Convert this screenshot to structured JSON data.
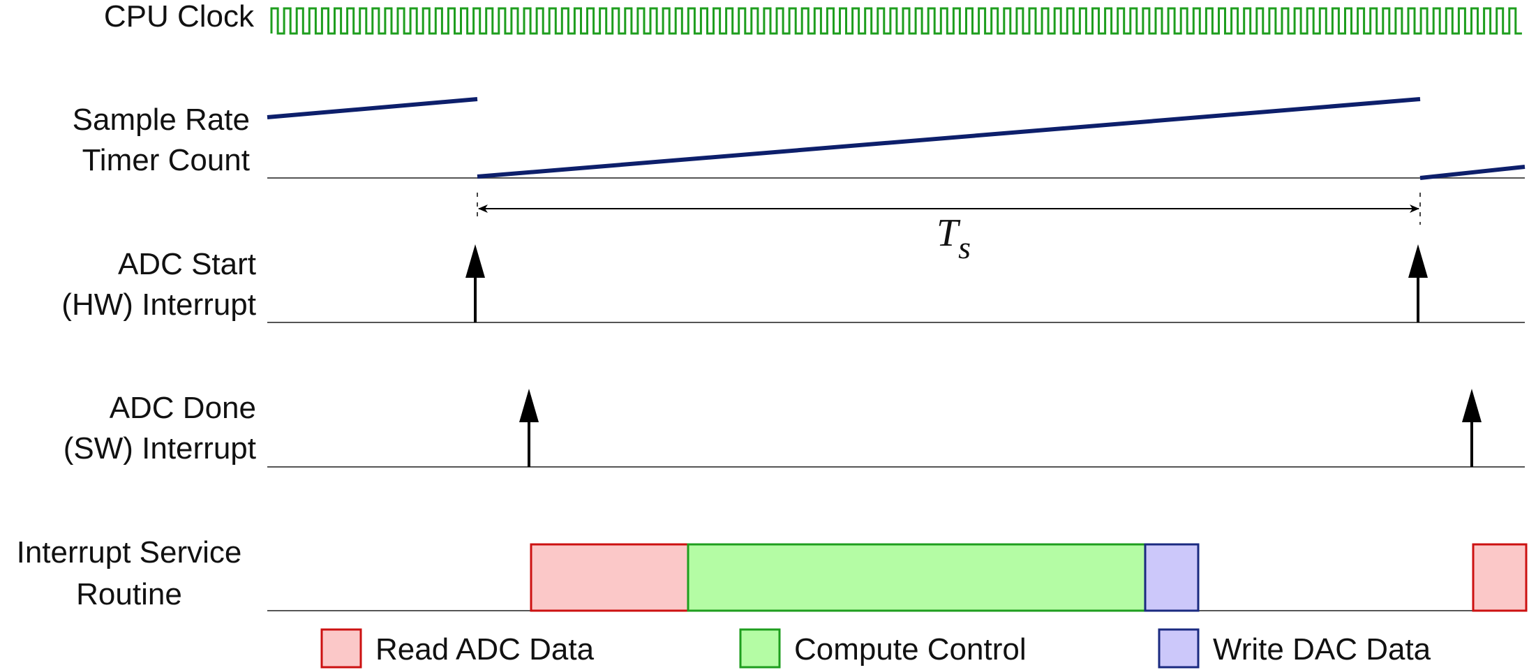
{
  "rows": {
    "cpu_clock": "CPU Clock",
    "timer_line1": "Sample Rate",
    "timer_line2": "Timer Count",
    "adc_start_line1": "ADC Start",
    "adc_start_line2": "(HW) Interrupt",
    "adc_done_line1": "ADC Done",
    "adc_done_line2": "(SW) Interrupt",
    "isr_line1": "Interrupt Service",
    "isr_line2": "Routine"
  },
  "period_label": {
    "main": "T",
    "subscript": "s"
  },
  "legend": [
    {
      "label": "Read ADC Data",
      "fill": "#fbc8c8",
      "stroke": "#cc1111"
    },
    {
      "label": "Compute Control",
      "fill": "#b4fca4",
      "stroke": "#1e9e1e"
    },
    {
      "label": "Write DAC Data",
      "fill": "#ccc8fa",
      "stroke": "#1a2a80"
    }
  ],
  "colors": {
    "clock": "#1e9e1e",
    "timer_ramp": "#0d1f6b"
  }
}
